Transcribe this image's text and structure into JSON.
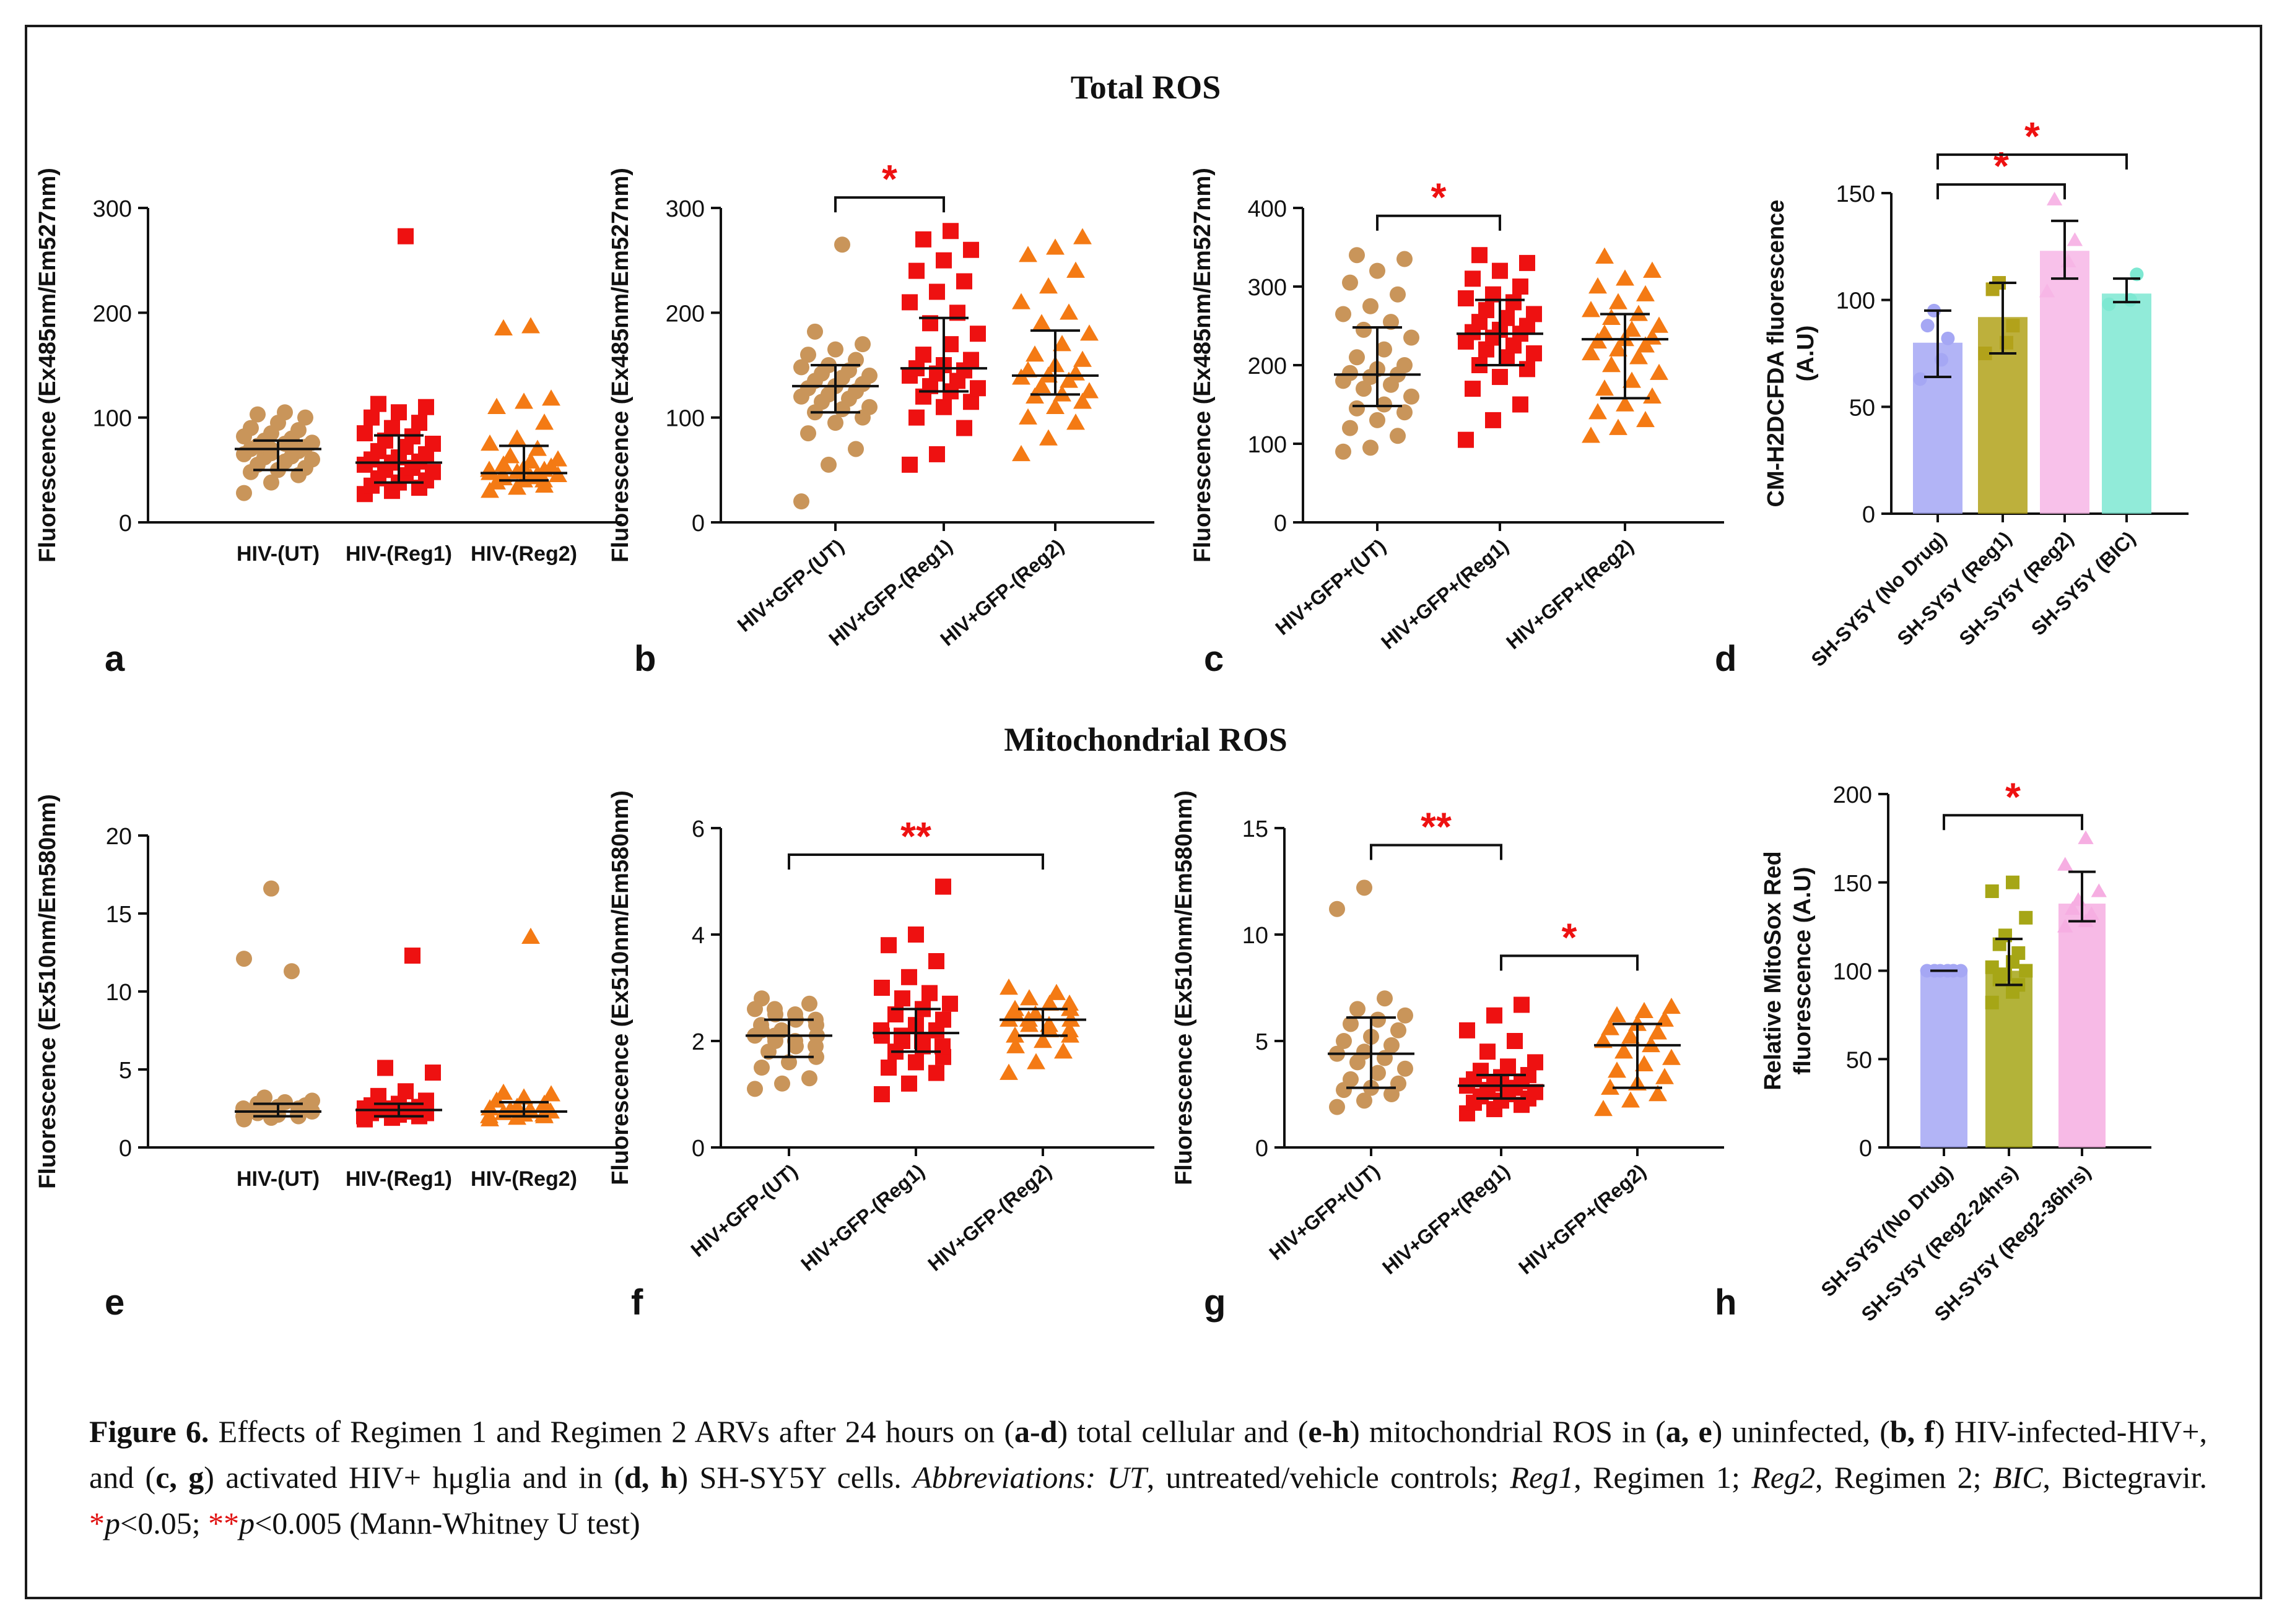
{
  "figure": {
    "total_title": "Total ROS",
    "mito_title": "Mitochondrial ROS",
    "colors": {
      "ut": "#c9955a",
      "reg1": "#ee1111",
      "reg2": "#f47a14",
      "nodrug": "#a5a7f4",
      "reg1_d": "#b2a21a",
      "reg2_d": "#f7b6e6",
      "bic": "#7ee8d2",
      "reg2_24": "#a6a616",
      "reg2_36": "#f6aee2",
      "star": "#ee1111"
    }
  },
  "caption": {
    "fig_label": "Figure 6.",
    "s1": " Effects of Regimen 1 and Regimen 2 ARVs after 24 hours on (",
    "b1": "a-d",
    "s2": ") total cellular and (",
    "b2": "e-h",
    "s3": ") mitochondrial ROS in (",
    "b3": "a, e",
    "s4": ") uninfected, (",
    "b4": "b, f",
    "s5": ") HIV-infected-HIV+, and (",
    "b5": "c, g",
    "s6": ") activated HIV+ hμglia and in (",
    "b6": "d, h",
    "s7": ") SH-SY5Y cells. ",
    "abbr": "Abbreviations: UT",
    "s8": ", untreated/vehicle controls; ",
    "reg1": "Reg1",
    "s9": ", Regimen 1; ",
    "reg2": "Reg2",
    "s10": ", Regimen 2; ",
    "bic": "BIC",
    "s11": ", Bictegravir. ",
    "star1": "*",
    "p1": "p",
    "s12": "<0.05; ",
    "star2": "**",
    "p2": "p",
    "s13": "<0.005 (Mann-Whitney U test)"
  },
  "chart_data": [
    {
      "id": "a",
      "type": "scatter",
      "panel_label": "a",
      "ylabel": "Fluorescence (Ex485nm/Em527nm)",
      "ylim": [
        0,
        300
      ],
      "yticks": [
        0,
        100,
        200,
        300
      ],
      "xtick_rotation": 0,
      "categories": [
        "HIV-(UT)",
        "HIV-(Reg1)",
        "HIV-(Reg2)"
      ],
      "groups": [
        {
          "marker": "circle",
          "color_key": "ut",
          "median": 70,
          "q1": 50,
          "q3": 78,
          "points": [
            28,
            38,
            45,
            48,
            50,
            52,
            55,
            58,
            60,
            62,
            63,
            65,
            66,
            68,
            70,
            70,
            72,
            73,
            75,
            76,
            78,
            80,
            82,
            85,
            88,
            90,
            95,
            100,
            103,
            105
          ]
        },
        {
          "marker": "square",
          "color_key": "reg1",
          "median": 57,
          "q1": 38,
          "q3": 83,
          "points": [
            27,
            30,
            33,
            35,
            38,
            40,
            42,
            45,
            48,
            50,
            52,
            55,
            57,
            58,
            60,
            62,
            65,
            68,
            72,
            75,
            78,
            82,
            85,
            90,
            95,
            100,
            105,
            110,
            113,
            273
          ]
        },
        {
          "marker": "triangle",
          "color_key": "reg2",
          "median": 47,
          "q1": 40,
          "q3": 73,
          "points": [
            30,
            33,
            35,
            38,
            40,
            40,
            42,
            43,
            45,
            45,
            46,
            47,
            48,
            50,
            50,
            52,
            53,
            55,
            58,
            60,
            63,
            70,
            75,
            80,
            95,
            110,
            115,
            118,
            185,
            187
          ]
        }
      ],
      "sig": []
    },
    {
      "id": "b",
      "type": "scatter",
      "panel_label": "b",
      "ylabel": "Fluorescence (Ex485nm/Em527nm)",
      "ylim": [
        0,
        300
      ],
      "yticks": [
        0,
        100,
        200,
        300
      ],
      "xtick_rotation": -40,
      "categories": [
        "HIV+GFP-(UT)",
        "HIV+GFP-(Reg1)",
        "HIV+GFP-(Reg2)"
      ],
      "groups": [
        {
          "marker": "circle",
          "color_key": "ut",
          "median": 130,
          "q1": 105,
          "q3": 150,
          "points": [
            20,
            55,
            70,
            85,
            95,
            100,
            105,
            108,
            110,
            115,
            118,
            120,
            122,
            125,
            128,
            130,
            132,
            135,
            138,
            140,
            142,
            145,
            148,
            150,
            155,
            160,
            165,
            170,
            182,
            265
          ]
        },
        {
          "marker": "square",
          "color_key": "reg1",
          "median": 147,
          "q1": 125,
          "q3": 195,
          "points": [
            55,
            65,
            90,
            100,
            110,
            115,
            120,
            125,
            128,
            130,
            135,
            140,
            142,
            145,
            147,
            150,
            155,
            160,
            170,
            180,
            190,
            200,
            210,
            220,
            230,
            240,
            250,
            260,
            270,
            278
          ]
        },
        {
          "marker": "triangle",
          "color_key": "reg2",
          "median": 140,
          "q1": 122,
          "q3": 183,
          "points": [
            65,
            80,
            95,
            100,
            110,
            115,
            120,
            122,
            125,
            130,
            135,
            138,
            140,
            142,
            145,
            150,
            155,
            160,
            170,
            180,
            190,
            200,
            210,
            225,
            240,
            255,
            262,
            272
          ]
        }
      ],
      "sig": [
        {
          "from": 0,
          "to": 1,
          "y": 310,
          "label": "*"
        }
      ]
    },
    {
      "id": "c",
      "type": "scatter",
      "panel_label": "c",
      "ylabel": "Fluorescence (Ex485nm/Em527nm)",
      "ylim": [
        0,
        400
      ],
      "yticks": [
        0,
        100,
        200,
        300,
        400
      ],
      "xtick_rotation": -40,
      "categories": [
        "HIV+GFP+(UT)",
        "HIV+GFP+(Reg1)",
        "HIV+GFP+(Reg2)"
      ],
      "groups": [
        {
          "marker": "circle",
          "color_key": "ut",
          "median": 188,
          "q1": 148,
          "q3": 248,
          "points": [
            90,
            95,
            110,
            120,
            130,
            140,
            145,
            150,
            160,
            170,
            175,
            180,
            185,
            188,
            190,
            195,
            200,
            210,
            220,
            235,
            245,
            255,
            265,
            275,
            290,
            305,
            320,
            335,
            340
          ]
        },
        {
          "marker": "square",
          "color_key": "reg1",
          "median": 240,
          "q1": 200,
          "q3": 283,
          "points": [
            105,
            130,
            150,
            170,
            185,
            195,
            200,
            210,
            215,
            220,
            225,
            230,
            235,
            240,
            242,
            245,
            250,
            255,
            260,
            265,
            270,
            280,
            285,
            290,
            300,
            310,
            320,
            330,
            340
          ]
        },
        {
          "marker": "triangle",
          "color_key": "reg2",
          "median": 233,
          "q1": 158,
          "q3": 265,
          "points": [
            110,
            120,
            130,
            140,
            150,
            160,
            170,
            180,
            190,
            200,
            210,
            215,
            220,
            225,
            230,
            233,
            235,
            240,
            245,
            250,
            260,
            265,
            270,
            280,
            290,
            300,
            310,
            320,
            338
          ]
        }
      ],
      "sig": [
        {
          "from": 0,
          "to": 1,
          "y": 390,
          "label": "*"
        }
      ]
    },
    {
      "id": "d",
      "type": "bar",
      "panel_label": "d",
      "ylabel": "CM-H2DCFDA fluorescence (A.U)",
      "ylim": [
        0,
        150
      ],
      "yticks": [
        0,
        50,
        100,
        150
      ],
      "xtick_rotation": -45,
      "categories": [
        "SH-SY5Y (No Drug)",
        "SH-SY5Y (Reg1)",
        "SH-SY5Y (Reg2)",
        "SH-SY5Y (BIC)"
      ],
      "groups": [
        {
          "marker": "circle",
          "color_key": "nodrug",
          "value": 80,
          "err_low": 64,
          "err_high": 95,
          "points": [
            63,
            72,
            82,
            88,
            95
          ]
        },
        {
          "marker": "square",
          "color_key": "reg1_d",
          "value": 92,
          "err_low": 75,
          "err_high": 108,
          "points": [
            75,
            80,
            88,
            105,
            108
          ]
        },
        {
          "marker": "triangle",
          "color_key": "reg2_d",
          "value": 123,
          "err_low": 110,
          "err_high": 137,
          "points": [
            104,
            118,
            128,
            147
          ]
        },
        {
          "marker": "circle",
          "color_key": "bic",
          "value": 103,
          "err_low": 99,
          "err_high": 110,
          "points": [
            98,
            100,
            112
          ]
        }
      ],
      "sig": [
        {
          "from": 0,
          "to": 2,
          "y": 154,
          "label": "*"
        },
        {
          "from": 0,
          "to": 3,
          "y": 168,
          "label": "*"
        }
      ]
    },
    {
      "id": "e",
      "type": "scatter",
      "panel_label": "e",
      "ylabel": "Fluorescence (Ex510nm/Em580nm)",
      "ylim": [
        0,
        20
      ],
      "yticks": [
        0,
        5,
        10,
        15,
        20
      ],
      "xtick_rotation": 0,
      "categories": [
        "HIV-(UT)",
        "HIV-(Reg1)",
        "HIV-(Reg2)"
      ],
      "groups": [
        {
          "marker": "circle",
          "color_key": "ut",
          "median": 2.3,
          "q1": 2.0,
          "q3": 2.8,
          "points": [
            1.8,
            1.9,
            2.0,
            2.0,
            2.1,
            2.1,
            2.2,
            2.2,
            2.3,
            2.3,
            2.3,
            2.4,
            2.4,
            2.5,
            2.5,
            2.6,
            2.7,
            2.8,
            2.9,
            3.0,
            3.2,
            11.3,
            12.1,
            16.6
          ]
        },
        {
          "marker": "square",
          "color_key": "reg1",
          "median": 2.4,
          "q1": 2.0,
          "q3": 2.8,
          "points": [
            1.8,
            1.9,
            2.0,
            2.0,
            2.1,
            2.2,
            2.2,
            2.3,
            2.3,
            2.4,
            2.4,
            2.5,
            2.5,
            2.6,
            2.7,
            2.8,
            3.0,
            3.3,
            3.6,
            4.8,
            5.1,
            12.3
          ]
        },
        {
          "marker": "triangle",
          "color_key": "reg2",
          "median": 2.3,
          "q1": 2.0,
          "q3": 2.9,
          "points": [
            1.8,
            1.9,
            2.0,
            2.0,
            2.1,
            2.1,
            2.2,
            2.3,
            2.3,
            2.4,
            2.4,
            2.5,
            2.6,
            2.8,
            3.0,
            3.2,
            3.4,
            3.5,
            13.5
          ]
        }
      ],
      "sig": []
    },
    {
      "id": "f",
      "type": "scatter",
      "panel_label": "f",
      "ylabel": "Fluorescence (Ex510nm/Em580nm)",
      "ylim": [
        0,
        6
      ],
      "yticks": [
        0,
        2,
        4,
        6
      ],
      "xtick_rotation": -40,
      "categories": [
        "HIV+GFP-(UT)",
        "HIV+GFP-(Reg1)",
        "HIV+GFP-(Reg2)"
      ],
      "groups": [
        {
          "marker": "circle",
          "color_key": "ut",
          "median": 2.1,
          "q1": 1.7,
          "q3": 2.4,
          "points": [
            1.1,
            1.2,
            1.3,
            1.5,
            1.6,
            1.7,
            1.8,
            1.9,
            1.9,
            2.0,
            2.0,
            2.1,
            2.1,
            2.1,
            2.2,
            2.2,
            2.3,
            2.3,
            2.4,
            2.4,
            2.5,
            2.5,
            2.6,
            2.6,
            2.7,
            2.8
          ]
        },
        {
          "marker": "square",
          "color_key": "reg1",
          "median": 2.15,
          "q1": 1.8,
          "q3": 2.6,
          "points": [
            1.0,
            1.2,
            1.4,
            1.5,
            1.6,
            1.7,
            1.8,
            1.9,
            1.9,
            2.0,
            2.0,
            2.1,
            2.1,
            2.2,
            2.2,
            2.3,
            2.4,
            2.5,
            2.6,
            2.7,
            2.8,
            2.9,
            3.0,
            3.2,
            3.5,
            3.8,
            4.0,
            4.9
          ]
        },
        {
          "marker": "triangle",
          "color_key": "reg2",
          "median": 2.4,
          "q1": 2.1,
          "q3": 2.6,
          "points": [
            1.4,
            1.6,
            1.8,
            1.9,
            2.0,
            2.1,
            2.1,
            2.2,
            2.2,
            2.3,
            2.3,
            2.4,
            2.4,
            2.4,
            2.5,
            2.5,
            2.6,
            2.6,
            2.7,
            2.7,
            2.8,
            2.9,
            3.0
          ]
        }
      ],
      "sig": [
        {
          "from": 0,
          "to": 2,
          "y": 5.5,
          "label": "**"
        }
      ]
    },
    {
      "id": "g",
      "type": "scatter",
      "panel_label": "g",
      "ylabel": "Fluorescence (Ex510nm/Em580nm)",
      "ylim": [
        0,
        15
      ],
      "yticks": [
        0,
        5,
        10,
        15
      ],
      "xtick_rotation": -40,
      "categories": [
        "HIV+GFP+(UT)",
        "HIV+GFP+(Reg1)",
        "HIV+GFP+(Reg2)"
      ],
      "groups": [
        {
          "marker": "circle",
          "color_key": "ut",
          "median": 4.4,
          "q1": 2.8,
          "q3": 6.1,
          "points": [
            1.9,
            2.2,
            2.5,
            2.7,
            2.8,
            3.0,
            3.2,
            3.5,
            3.7,
            4.0,
            4.2,
            4.4,
            4.5,
            4.8,
            5.0,
            5.2,
            5.5,
            5.8,
            6.0,
            6.2,
            6.5,
            7.0,
            11.2,
            12.2
          ]
        },
        {
          "marker": "square",
          "color_key": "reg1",
          "median": 2.9,
          "q1": 2.3,
          "q3": 3.4,
          "points": [
            1.6,
            1.8,
            2.0,
            2.1,
            2.2,
            2.3,
            2.4,
            2.5,
            2.6,
            2.7,
            2.8,
            2.9,
            3.0,
            3.1,
            3.2,
            3.3,
            3.4,
            3.6,
            3.8,
            4.0,
            4.5,
            5.0,
            5.5,
            6.2,
            6.7
          ]
        },
        {
          "marker": "triangle",
          "color_key": "reg2",
          "median": 4.8,
          "q1": 2.8,
          "q3": 5.8,
          "points": [
            1.8,
            2.2,
            2.5,
            2.8,
            3.0,
            3.3,
            3.6,
            3.9,
            4.2,
            4.5,
            4.8,
            5.0,
            5.2,
            5.4,
            5.6,
            5.8,
            6.0,
            6.2,
            6.4,
            6.6
          ]
        }
      ],
      "sig": [
        {
          "from": 0,
          "to": 1,
          "y": 14.2,
          "label": "**"
        },
        {
          "from": 1,
          "to": 2,
          "y": 9.0,
          "label": "*"
        }
      ]
    },
    {
      "id": "h",
      "type": "bar",
      "panel_label": "h",
      "ylabel": "Relative MitoSox Red fluorescence (A.U)",
      "ylim": [
        0,
        200
      ],
      "yticks": [
        0,
        50,
        100,
        150,
        200
      ],
      "xtick_rotation": -45,
      "categories": [
        "SH-SY5Y(No Drug)",
        "SH-SY5Y (Reg2-24hrs)",
        "SH-SY5Y (Reg2-36hrs)"
      ],
      "groups": [
        {
          "marker": "circle",
          "color_key": "nodrug",
          "value": 100,
          "err_low": 100,
          "err_high": 100,
          "points": [
            100,
            100,
            100,
            100,
            100,
            100,
            100,
            100,
            100,
            100
          ]
        },
        {
          "marker": "square",
          "color_key": "reg2_24",
          "value": 100,
          "err_low": 92,
          "err_high": 118,
          "points": [
            82,
            88,
            92,
            95,
            98,
            100,
            102,
            105,
            110,
            115,
            120,
            130,
            145,
            150
          ]
        },
        {
          "marker": "triangle",
          "color_key": "reg2_36",
          "value": 138,
          "err_low": 128,
          "err_high": 156,
          "points": [
            125,
            128,
            132,
            135,
            140,
            145,
            160,
            175
          ]
        }
      ],
      "sig": [
        {
          "from": 0,
          "to": 2,
          "y": 188,
          "label": "*"
        }
      ]
    }
  ]
}
